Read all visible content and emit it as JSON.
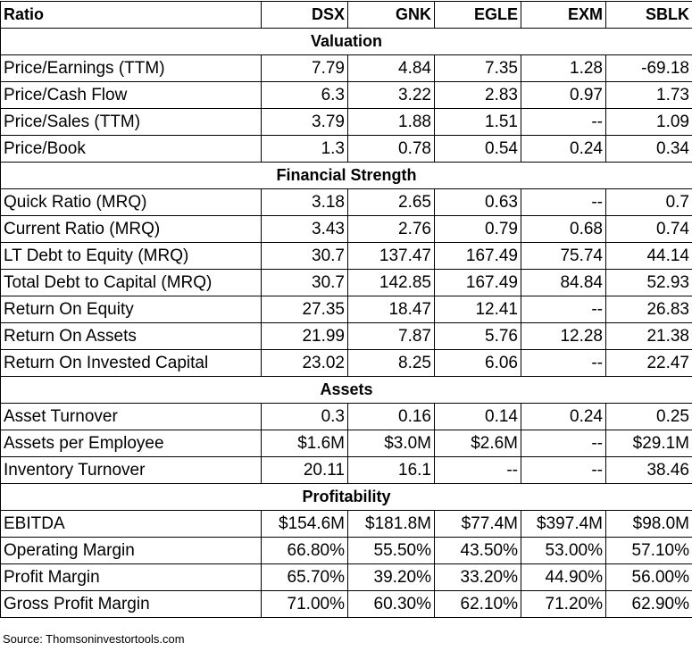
{
  "header": [
    "Ratio",
    "DSX",
    "GNK",
    "EGLE",
    "EXM",
    "SBLK"
  ],
  "sections": [
    {
      "title": "Valuation",
      "rows": [
        {
          "label": "Price/Earnings (TTM)",
          "values": [
            "7.79",
            "4.84",
            "7.35",
            "1.28",
            "-69.18"
          ]
        },
        {
          "label": "Price/Cash Flow",
          "values": [
            "6.3",
            "3.22",
            "2.83",
            "0.97",
            "1.73"
          ]
        },
        {
          "label": "Price/Sales (TTM)",
          "values": [
            "3.79",
            "1.88",
            "1.51",
            "--",
            "1.09"
          ]
        },
        {
          "label": "Price/Book",
          "values": [
            "1.3",
            "0.78",
            "0.54",
            "0.24",
            "0.34"
          ]
        }
      ]
    },
    {
      "title": "Financial Strength",
      "rows": [
        {
          "label": "Quick Ratio (MRQ)",
          "values": [
            "3.18",
            "2.65",
            "0.63",
            "--",
            "0.7"
          ]
        },
        {
          "label": "Current Ratio (MRQ)",
          "values": [
            "3.43",
            "2.76",
            "0.79",
            "0.68",
            "0.74"
          ]
        },
        {
          "label": "LT Debt to Equity (MRQ)",
          "values": [
            "30.7",
            "137.47",
            "167.49",
            "75.74",
            "44.14"
          ]
        },
        {
          "label": "Total Debt to Capital (MRQ)",
          "values": [
            "30.7",
            "142.85",
            "167.49",
            "84.84",
            "52.93"
          ]
        },
        {
          "label": "Return On Equity",
          "values": [
            "27.35",
            "18.47",
            "12.41",
            "--",
            "26.83"
          ]
        },
        {
          "label": "Return On Assets",
          "values": [
            "21.99",
            "7.87",
            "5.76",
            "12.28",
            "21.38"
          ]
        },
        {
          "label": "Return On Invested Capital",
          "values": [
            "23.02",
            "8.25",
            "6.06",
            "--",
            "22.47"
          ]
        }
      ]
    },
    {
      "title": "Assets",
      "rows": [
        {
          "label": "Asset Turnover",
          "values": [
            "0.3",
            "0.16",
            "0.14",
            "0.24",
            "0.25"
          ]
        },
        {
          "label": "Assets per Employee",
          "values": [
            "$1.6M",
            "$3.0M",
            "$2.6M",
            "--",
            "$29.1M"
          ]
        },
        {
          "label": "Inventory Turnover",
          "values": [
            "20.11",
            "16.1",
            "--",
            "--",
            "38.46"
          ]
        }
      ]
    },
    {
      "title": "Profitability",
      "rows": [
        {
          "label": "EBITDA",
          "values": [
            "$154.6M",
            "$181.8M",
            "$77.4M",
            "$397.4M",
            "$98.0M"
          ]
        },
        {
          "label": "Operating Margin",
          "values": [
            "66.80%",
            "55.50%",
            "43.50%",
            "53.00%",
            "57.10%"
          ]
        },
        {
          "label": "Profit Margin",
          "values": [
            "65.70%",
            "39.20%",
            "33.20%",
            "44.90%",
            "56.00%"
          ]
        },
        {
          "label": "Gross Profit Margin",
          "values": [
            "71.00%",
            "60.30%",
            "62.10%",
            "71.20%",
            "62.90%"
          ]
        }
      ]
    }
  ],
  "source": "Source: Thomsoninvestortools.com"
}
